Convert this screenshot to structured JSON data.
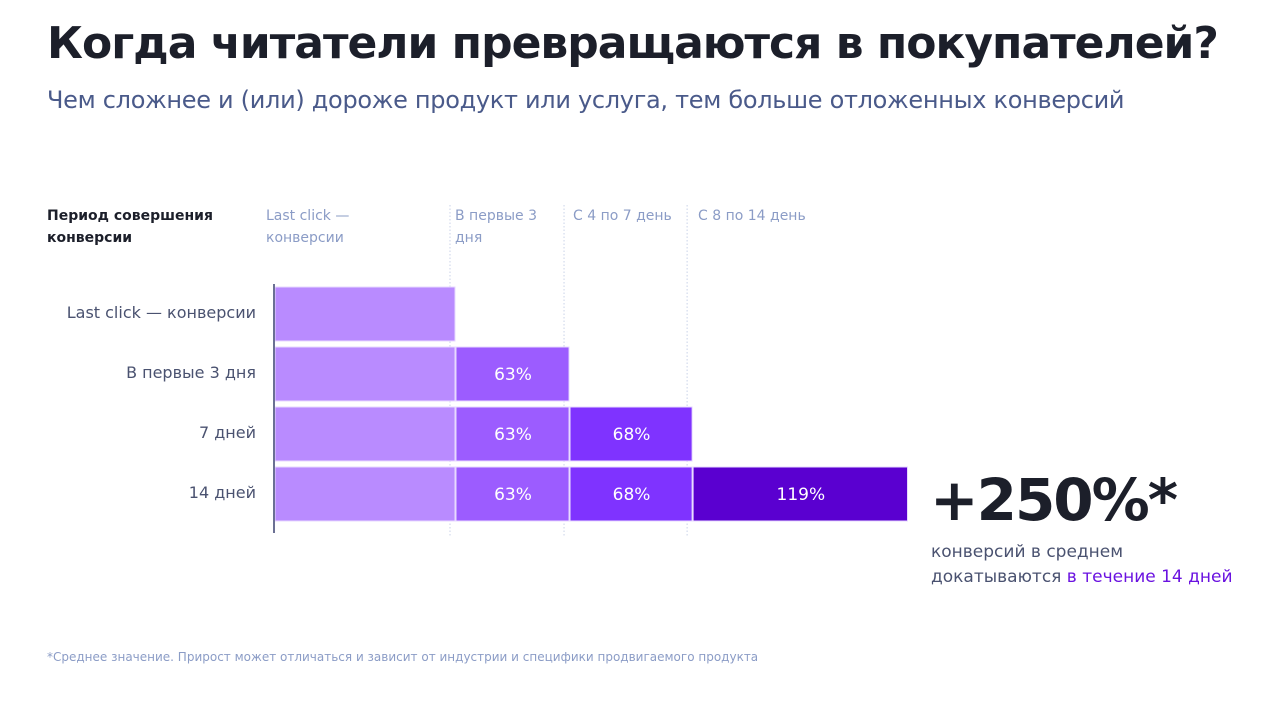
{
  "header": {
    "title": "Когда читатели превращаются в покупателей?",
    "subtitle": "Чем сложнее и (или) дороже продукт или услуга, тем больше отложенных конверсий"
  },
  "columns": {
    "row_header": "Период совершения конверсии",
    "items": [
      "Last click — конверсии",
      "В первые 3 дня",
      "С 4 по 7 день",
      "С 8 по 14 день"
    ]
  },
  "chart_data": {
    "type": "bar",
    "orientation": "horizontal-stacked",
    "title": "Когда читатели превращаются в покупателей?",
    "xlabel": "",
    "ylabel": "Период совершения конверсии",
    "categories": [
      "Last click — конверсии",
      "В первые 3 дня",
      "7 дней",
      "14 дней"
    ],
    "series": [
      {
        "name": "Last click — конверсии",
        "color": "#b98bff",
        "values": [
          100,
          100,
          100,
          100
        ],
        "labels": [
          "",
          "",
          "",
          ""
        ]
      },
      {
        "name": "В первые 3 дня",
        "color": "#9c5cff",
        "values": [
          null,
          63,
          63,
          63
        ],
        "labels": [
          "",
          "63%",
          "63%",
          "63%"
        ]
      },
      {
        "name": "С 4 по 7 день",
        "color": "#7f33ff",
        "values": [
          null,
          null,
          68,
          68
        ],
        "labels": [
          "",
          "",
          "68%",
          "68%"
        ]
      },
      {
        "name": "С 8 по 14 день",
        "color": "#5a00d0",
        "values": [
          null,
          null,
          null,
          119
        ],
        "labels": [
          "",
          "",
          "",
          "119%"
        ]
      }
    ],
    "unit": "% of last-click conversions",
    "grid": "vertical dotted at segment boundaries",
    "legend": "top (column headers)"
  },
  "highlight": {
    "value": "+250%*",
    "caption_line1": "конверсий в среднем",
    "caption_line2_prefix": "докатываются ",
    "caption_line2_accent": "в течение 14 дней"
  },
  "footnote": "*Среднее значение. Прирост может отличаться и зависит от индустрии и специфики продвигаемого продукта"
}
